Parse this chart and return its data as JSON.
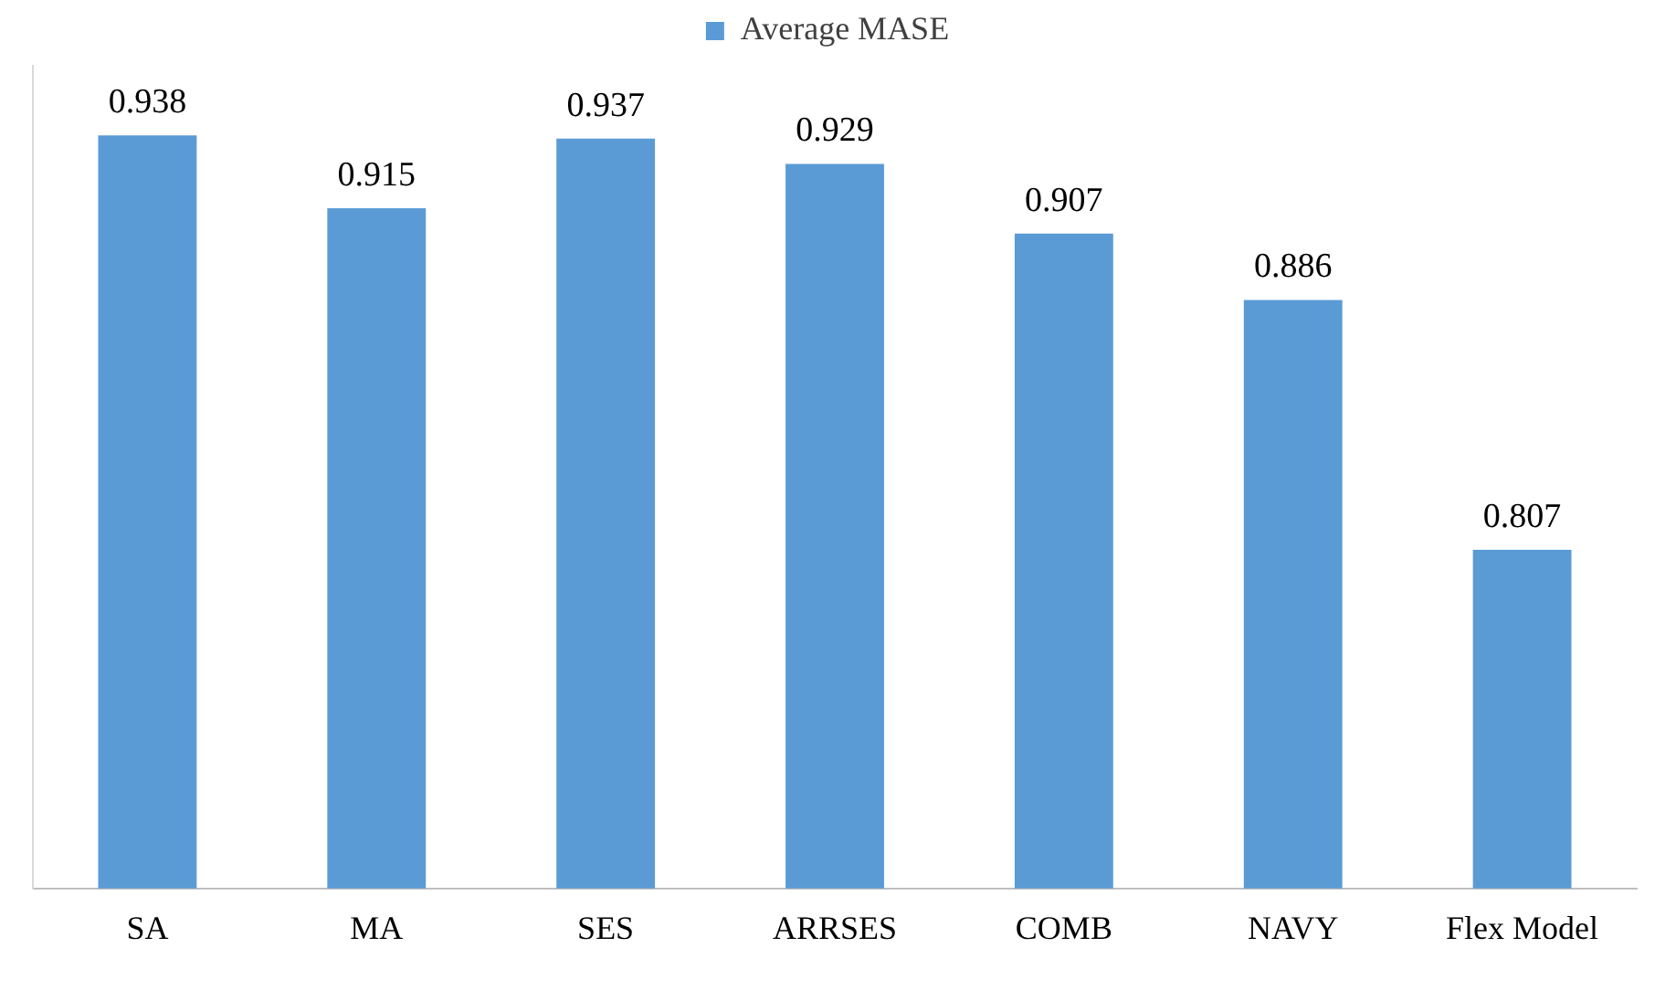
{
  "chart_data": {
    "type": "bar",
    "categories": [
      "SA",
      "MA",
      "SES",
      "ARRSES",
      "COMB",
      "NAVY",
      "Flex Model"
    ],
    "series": [
      {
        "name": "Average MASE",
        "color": "#5b9bd5",
        "values": [
          0.938,
          0.915,
          0.937,
          0.929,
          0.907,
          0.886,
          0.807
        ]
      }
    ],
    "ylim": [
      0.7,
      0.96
    ],
    "data_labels": true,
    "grid": false,
    "legend": "top",
    "tick_labels": "x"
  }
}
